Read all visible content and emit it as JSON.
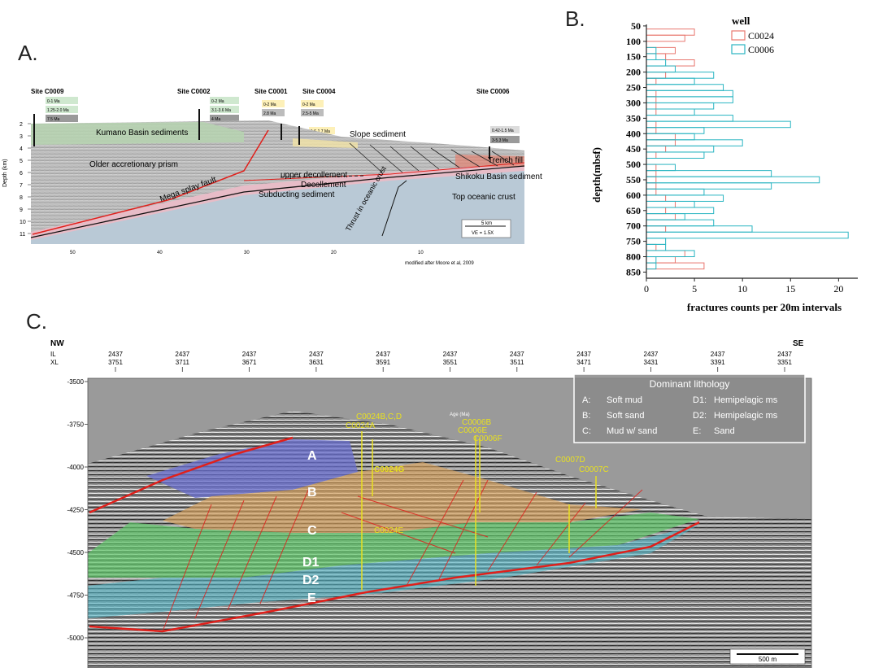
{
  "panelA": {
    "letter": "A.",
    "sites": [
      {
        "name": "Site C0009",
        "ages": [
          "0-1 Ma",
          "1.25-2.0 Ma",
          "7.5 Ma"
        ]
      },
      {
        "name": "Site C0002",
        "ages": [
          "0-2 Ma",
          "3.1-3.6 Ma",
          "4 Ma"
        ]
      },
      {
        "name": "Site C0001",
        "ages": [
          "0-2 Ma",
          "2.8 Ma"
        ]
      },
      {
        "name": "Site C0004",
        "ages": [
          "0-2 Ma",
          "2.5-5 Ma",
          "1.6-1.7 Ma"
        ]
      },
      {
        "name": "Site C0006",
        "ages": [
          "0.42-1.5 Ma",
          "3-5.3 Ma"
        ]
      }
    ],
    "labels": {
      "kumano": "Kumano Basin sediments",
      "older": "Older accretionary prism",
      "splay": "Mega splay fault",
      "slope": "Slope sediment",
      "upperdec": "upper decollement",
      "decollement": "Decollement",
      "subducting": "Subducting sediment",
      "trench": "Trench fill",
      "shikoku": "Shikoku Basin sediment",
      "topcrust": "Top oceanic crust",
      "thrust": "Thrust in oceanic crust",
      "ylabel": "Depth (km)",
      "scale": "5 km",
      "ve": "VE = 1.5X",
      "credit": "modified after Moore et al, 2009"
    },
    "yticks": [
      "2",
      "3",
      "4",
      "5",
      "6",
      "7",
      "8",
      "9",
      "10",
      "11"
    ],
    "xticks": [
      "50",
      "40",
      "30",
      "20",
      "10"
    ]
  },
  "panelB": {
    "letter": "B.",
    "chart_data": {
      "type": "bar",
      "orientation": "horizontal",
      "legend_title": "well",
      "ylabel": "depth(mbsf)",
      "xlabel": "fractures counts per 20m intervals",
      "xlim": [
        0,
        22
      ],
      "xticks": [
        0,
        5,
        10,
        15,
        20
      ],
      "ylim": [
        45,
        870
      ],
      "yticks": [
        50,
        100,
        150,
        200,
        250,
        300,
        350,
        400,
        450,
        500,
        550,
        600,
        650,
        700,
        750,
        800,
        850
      ],
      "bin_size": 20,
      "series": [
        {
          "name": "C0024",
          "color": "#e8776f",
          "depths": [
            70,
            90,
            110,
            130,
            150,
            170,
            190,
            210,
            230,
            250,
            270,
            290,
            310,
            330,
            350,
            370,
            390,
            410,
            430,
            450,
            470,
            490,
            510,
            530,
            550,
            570,
            590,
            610,
            630,
            650,
            670,
            690,
            710,
            730,
            750,
            770,
            790,
            810,
            830
          ],
          "values": [
            5,
            4,
            0,
            3,
            2,
            5,
            0,
            2,
            1,
            0,
            1,
            1,
            1,
            1,
            0,
            1,
            1,
            3,
            3,
            2,
            1,
            0,
            1,
            1,
            1,
            1,
            1,
            2,
            3,
            2,
            3,
            0,
            2,
            0,
            0,
            1,
            4,
            3,
            6
          ]
        },
        {
          "name": "C0006",
          "color": "#2ab5c2",
          "depths": [
            70,
            90,
            110,
            130,
            150,
            170,
            190,
            210,
            230,
            250,
            270,
            290,
            310,
            330,
            350,
            370,
            390,
            410,
            430,
            450,
            470,
            490,
            510,
            530,
            550,
            570,
            590,
            610,
            630,
            650,
            670,
            690,
            710,
            730,
            750,
            770,
            790,
            810,
            830
          ],
          "values": [
            0,
            0,
            0,
            1,
            1,
            2,
            3,
            7,
            5,
            8,
            9,
            9,
            7,
            5,
            9,
            15,
            6,
            5,
            10,
            7,
            6,
            0,
            3,
            13,
            18,
            13,
            6,
            8,
            5,
            7,
            4,
            7,
            11,
            21,
            2,
            2,
            5,
            1,
            1
          ]
        }
      ]
    }
  },
  "panelC": {
    "letter": "C.",
    "nw": "NW",
    "se": "SE",
    "il_label": "IL",
    "xl_label": "XL",
    "xticks": [
      {
        "il": "2437",
        "xl": "3751"
      },
      {
        "il": "2437",
        "xl": "3711"
      },
      {
        "il": "2437",
        "xl": "3671"
      },
      {
        "il": "2437",
        "xl": "3631"
      },
      {
        "il": "2437",
        "xl": "3591"
      },
      {
        "il": "2437",
        "xl": "3551"
      },
      {
        "il": "2437",
        "xl": "3511"
      },
      {
        "il": "2437",
        "xl": "3471"
      },
      {
        "il": "2437",
        "xl": "3431"
      },
      {
        "il": "2437",
        "xl": "3391"
      },
      {
        "il": "2437",
        "xl": "3351"
      }
    ],
    "yticks": [
      "-3500",
      "-3750",
      "-4000",
      "-4250",
      "-4500",
      "-4750",
      "-5000"
    ],
    "legend": {
      "title": "Dominant lithology",
      "items": [
        {
          "key": "A:",
          "text": "Soft mud"
        },
        {
          "key": "D1:",
          "text": "Hemipelagic ms"
        },
        {
          "key": "B:",
          "text": "Soft sand"
        },
        {
          "key": "D2:",
          "text": "Hemipelagic ms"
        },
        {
          "key": "C:",
          "text": "Mud w/ sand"
        },
        {
          "key": "E:",
          "text": "Sand"
        }
      ]
    },
    "units": [
      "A",
      "B",
      "C",
      "D1",
      "D2",
      "E"
    ],
    "wells": [
      "C0024B,C,D",
      "C0024A",
      "C0024G",
      "C0024E",
      "C0006B",
      "C0006E",
      "C0006F",
      "C0007D",
      "C0007C"
    ],
    "age_label": "Age (Ma)",
    "scale": "500 m"
  },
  "colors": {
    "unitA": "#6a6fd0",
    "unitB": "#d8a25a",
    "unitC": "#d8a25a",
    "unitD1": "#5fc76a",
    "unitD2": "#54b8c8",
    "fault": "#e0201b",
    "well": "#e8e020"
  }
}
